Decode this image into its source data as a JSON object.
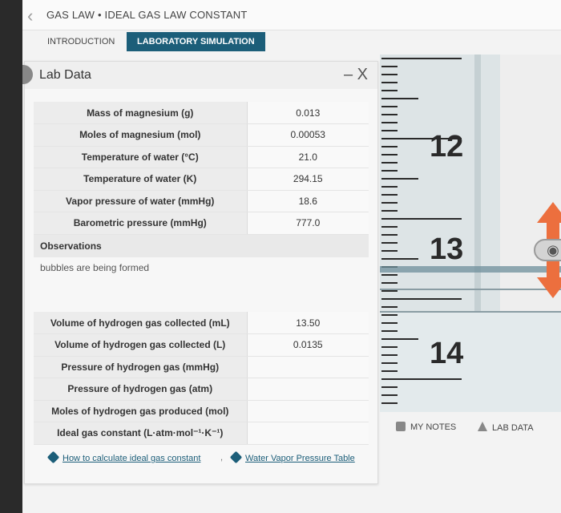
{
  "header": {
    "title": "GAS LAW • IDEAL GAS LAW CONSTANT"
  },
  "tabs": [
    {
      "label": "INTRODUCTION"
    },
    {
      "label": "LABORATORY SIMULATION"
    }
  ],
  "panel": {
    "title": "Lab Data",
    "controls": "– X"
  },
  "table1": {
    "rows": [
      {
        "label": "Mass of magnesium (g)",
        "value": "0.013"
      },
      {
        "label": "Moles of magnesium (mol)",
        "value": "0.00053"
      },
      {
        "label": "Temperature of water (°C)",
        "value": "21.0"
      },
      {
        "label": "Temperature of water (K)",
        "value": "294.15"
      },
      {
        "label": "Vapor pressure of water (mmHg)",
        "value": "18.6"
      },
      {
        "label": "Barometric pressure (mmHg)",
        "value": "777.0"
      }
    ]
  },
  "observations": {
    "heading": "Observations",
    "text": "bubbles are being formed"
  },
  "table2": {
    "rows": [
      {
        "label": "Volume of hydrogen gas collected (mL)",
        "value": "13.50"
      },
      {
        "label": "Volume of hydrogen gas collected (L)",
        "value": "0.0135"
      },
      {
        "label": "Pressure of hydrogen gas (mmHg)",
        "value": ""
      },
      {
        "label": "Pressure of hydrogen gas (atm)",
        "value": ""
      },
      {
        "label": "Moles of hydrogen gas produced (mol)",
        "value": ""
      },
      {
        "label": "Ideal gas constant (L·atm·mol⁻¹·K⁻¹)",
        "value": ""
      }
    ]
  },
  "links": {
    "calc": "How to calculate ideal gas constant",
    "vapor": "Water Vapor Pressure Table"
  },
  "simulation": {
    "scale_labels": [
      "12",
      "13",
      "14"
    ]
  },
  "bottom": {
    "notes": "MY NOTES",
    "lab_data": "LAB DATA"
  }
}
